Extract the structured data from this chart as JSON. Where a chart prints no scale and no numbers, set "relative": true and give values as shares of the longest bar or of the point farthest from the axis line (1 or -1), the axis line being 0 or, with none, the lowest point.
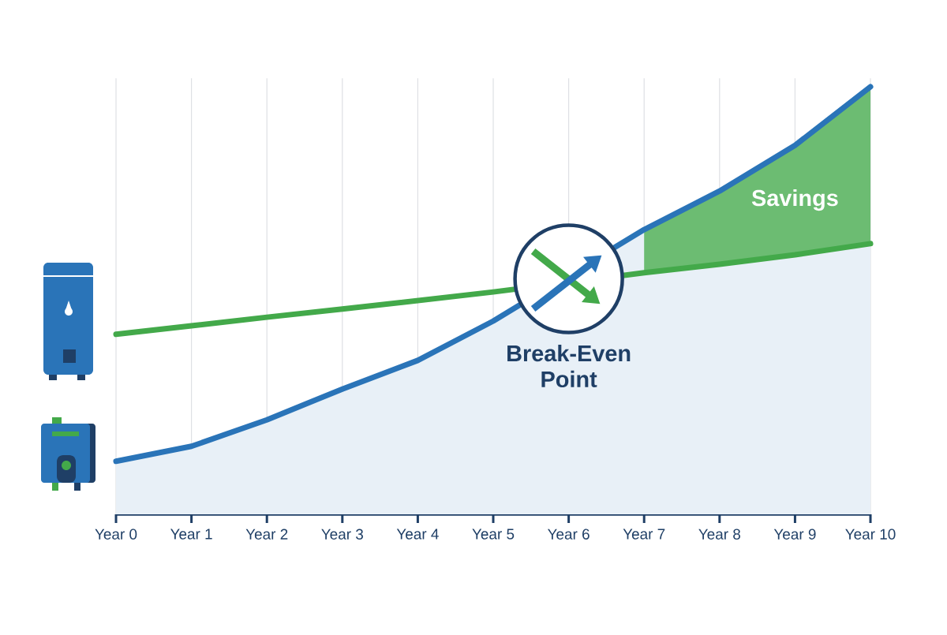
{
  "chart_data": {
    "type": "line",
    "relative": true,
    "grid": "x",
    "line_style": "solid",
    "categories": [
      "Year 0",
      "Year 1",
      "Year 2",
      "Year 3",
      "Year 4",
      "Year 5",
      "Year 6",
      "Year 7",
      "Year 8",
      "Year 9",
      "Year 10"
    ],
    "series": [
      {
        "type": "area",
        "color": "#2a74b8",
        "values": [
          0.124,
          0.159,
          0.221,
          0.293,
          0.36,
          0.452,
          null,
          0.666,
          0.756,
          0.863,
          1
        ]
      },
      {
        "color": "#43a94a",
        "values": [
          0.421,
          0.441,
          0.461,
          0.48,
          0.5,
          0.52,
          null,
          0.565,
          0.585,
          0.607,
          0.633
        ],
        "lower": [
          null,
          null,
          null,
          null,
          null,
          null,
          null,
          0.565,
          0.585,
          0.607,
          0.633
        ],
        "upper": [
          null,
          null,
          null,
          null,
          null,
          null,
          null,
          0.666,
          0.756,
          0.863,
          1
        ]
      }
    ],
    "annotations": [
      "Break-Even Point",
      "Savings"
    ]
  }
}
